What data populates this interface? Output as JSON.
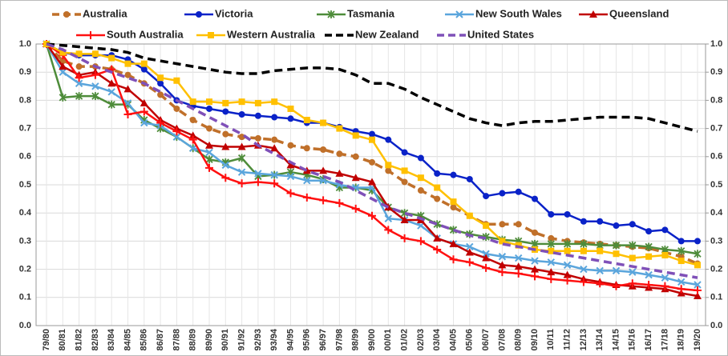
{
  "chart_data": {
    "type": "line",
    "categories": [
      "79/80",
      "80/81",
      "81/82",
      "82/83",
      "83/84",
      "84/85",
      "85/86",
      "86/87",
      "87/88",
      "88/89",
      "89/90",
      "90/91",
      "91/92",
      "92/93",
      "93/94",
      "94/95",
      "95/96",
      "96/97",
      "97/98",
      "98/99",
      "99/00",
      "00/01",
      "01/02",
      "02/03",
      "03/04",
      "04/05",
      "05/06",
      "06/07",
      "07/08",
      "08/09",
      "09/10",
      "10/11",
      "11/12",
      "12/13",
      "13/14",
      "14/15",
      "15/16",
      "16/17",
      "17/18",
      "18/19",
      "19/20"
    ],
    "ylim": [
      0,
      1
    ],
    "yticks": [
      {
        "value": 0,
        "label": "0.0"
      },
      0.1,
      0.2,
      0.3,
      0.4,
      0.5,
      0.6,
      0.7,
      0.8,
      0.9,
      {
        "value": 1,
        "label": "1.0"
      }
    ],
    "y2lim": [
      0,
      1
    ],
    "y2ticks": [
      {
        "value": 0,
        "label": "0.0"
      },
      0.1,
      0.2,
      0.3,
      0.4,
      0.5,
      0.6,
      0.7,
      0.8,
      0.9,
      {
        "value": 1,
        "label": "1.0"
      }
    ],
    "grid": true,
    "series": [
      {
        "name": "Australia",
        "color": "#c0702a",
        "marker": "circle",
        "dash": true,
        "values": [
          1.0,
          0.94,
          0.92,
          0.92,
          0.91,
          0.89,
          0.86,
          0.82,
          0.77,
          0.73,
          0.7,
          0.68,
          0.67,
          0.665,
          0.66,
          0.64,
          0.63,
          0.625,
          0.61,
          0.6,
          0.58,
          0.55,
          0.51,
          0.48,
          0.45,
          0.42,
          0.39,
          0.36,
          0.36,
          0.36,
          0.33,
          0.31,
          0.3,
          0.295,
          0.29,
          0.285,
          0.28,
          0.275,
          0.26,
          0.245,
          0.22
        ]
      },
      {
        "name": "Victoria",
        "color": "#0a22c8",
        "marker": "circle",
        "dash": false,
        "values": [
          1.0,
          0.97,
          0.96,
          0.96,
          0.96,
          0.945,
          0.91,
          0.86,
          0.8,
          0.78,
          0.77,
          0.76,
          0.75,
          0.745,
          0.74,
          0.735,
          0.72,
          0.72,
          0.705,
          0.69,
          0.68,
          0.66,
          0.615,
          0.595,
          0.54,
          0.535,
          0.52,
          0.46,
          0.47,
          0.475,
          0.45,
          0.395,
          0.395,
          0.37,
          0.37,
          0.355,
          0.36,
          0.335,
          0.34,
          0.3,
          0.3
        ]
      },
      {
        "name": "Tasmania",
        "color": "#4e8c3a",
        "marker": "star",
        "dash": false,
        "values": [
          1.0,
          0.81,
          0.815,
          0.815,
          0.785,
          0.785,
          0.73,
          0.7,
          0.67,
          0.63,
          0.59,
          0.58,
          0.595,
          0.53,
          0.535,
          0.545,
          0.535,
          0.52,
          0.49,
          0.49,
          0.48,
          0.42,
          0.4,
          0.39,
          0.36,
          0.34,
          0.325,
          0.315,
          0.305,
          0.3,
          0.29,
          0.29,
          0.29,
          0.29,
          0.285,
          0.285,
          0.285,
          0.28,
          0.27,
          0.265,
          0.255
        ]
      },
      {
        "name": "New South Wales",
        "color": "#5aa5dc",
        "marker": "x",
        "dash": false,
        "values": [
          1.0,
          0.9,
          0.86,
          0.85,
          0.83,
          0.79,
          0.72,
          0.71,
          0.67,
          0.63,
          0.615,
          0.57,
          0.545,
          0.54,
          0.535,
          0.53,
          0.515,
          0.515,
          0.5,
          0.49,
          0.49,
          0.38,
          0.375,
          0.355,
          0.31,
          0.29,
          0.28,
          0.255,
          0.245,
          0.24,
          0.23,
          0.225,
          0.215,
          0.2,
          0.195,
          0.195,
          0.19,
          0.18,
          0.17,
          0.155,
          0.145
        ]
      },
      {
        "name": "Queensland",
        "color": "#c00000",
        "marker": "triangle",
        "dash": false,
        "values": [
          1.0,
          0.92,
          0.89,
          0.9,
          0.86,
          0.84,
          0.79,
          0.73,
          0.7,
          0.675,
          0.64,
          0.635,
          0.635,
          0.64,
          0.63,
          0.57,
          0.55,
          0.55,
          0.54,
          0.525,
          0.51,
          0.42,
          0.375,
          0.375,
          0.31,
          0.29,
          0.26,
          0.24,
          0.215,
          0.21,
          0.2,
          0.19,
          0.18,
          0.165,
          0.155,
          0.145,
          0.14,
          0.135,
          0.13,
          0.115,
          0.105
        ]
      },
      {
        "name": "South Australia",
        "color": "#ff1010",
        "marker": "plus",
        "dash": false,
        "values": [
          1.0,
          0.96,
          0.88,
          0.89,
          0.91,
          0.75,
          0.76,
          0.72,
          0.69,
          0.66,
          0.56,
          0.525,
          0.505,
          0.51,
          0.505,
          0.47,
          0.455,
          0.445,
          0.435,
          0.415,
          0.39,
          0.34,
          0.31,
          0.3,
          0.27,
          0.235,
          0.225,
          0.205,
          0.19,
          0.185,
          0.175,
          0.165,
          0.16,
          0.155,
          0.15,
          0.14,
          0.15,
          0.145,
          0.14,
          0.13,
          0.125
        ]
      },
      {
        "name": "Western Australia",
        "color": "#ffc000",
        "marker": "square",
        "dash": false,
        "values": [
          1.0,
          0.97,
          0.965,
          0.965,
          0.95,
          0.93,
          0.93,
          0.88,
          0.87,
          0.795,
          0.795,
          0.79,
          0.795,
          0.79,
          0.795,
          0.77,
          0.73,
          0.72,
          0.7,
          0.675,
          0.66,
          0.57,
          0.55,
          0.525,
          0.49,
          0.44,
          0.39,
          0.355,
          0.3,
          0.285,
          0.27,
          0.265,
          0.265,
          0.265,
          0.265,
          0.255,
          0.24,
          0.245,
          0.25,
          0.23,
          0.215
        ]
      },
      {
        "name": "New Zealand",
        "color": "#000000",
        "marker": "none",
        "dash": true,
        "values": [
          1.0,
          0.995,
          0.99,
          0.985,
          0.98,
          0.97,
          0.95,
          0.94,
          0.93,
          0.92,
          0.91,
          0.9,
          0.895,
          0.895,
          0.905,
          0.91,
          0.915,
          0.915,
          0.91,
          0.89,
          0.86,
          0.86,
          0.84,
          0.81,
          0.785,
          0.76,
          0.735,
          0.72,
          0.71,
          0.72,
          0.725,
          0.725,
          0.73,
          0.735,
          0.74,
          0.74,
          0.74,
          0.735,
          0.72,
          0.705,
          0.69
        ]
      },
      {
        "name": "United States",
        "color": "#7f50b8",
        "marker": "none",
        "dash": true,
        "values": [
          1.0,
          0.98,
          0.95,
          0.92,
          0.9,
          0.88,
          0.86,
          0.83,
          0.8,
          0.77,
          0.74,
          0.71,
          0.68,
          0.64,
          0.61,
          0.58,
          0.55,
          0.53,
          0.51,
          0.48,
          0.45,
          0.42,
          0.4,
          0.38,
          0.36,
          0.34,
          0.32,
          0.31,
          0.29,
          0.28,
          0.27,
          0.26,
          0.25,
          0.24,
          0.23,
          0.22,
          0.21,
          0.2,
          0.19,
          0.18,
          0.17
        ]
      }
    ]
  }
}
